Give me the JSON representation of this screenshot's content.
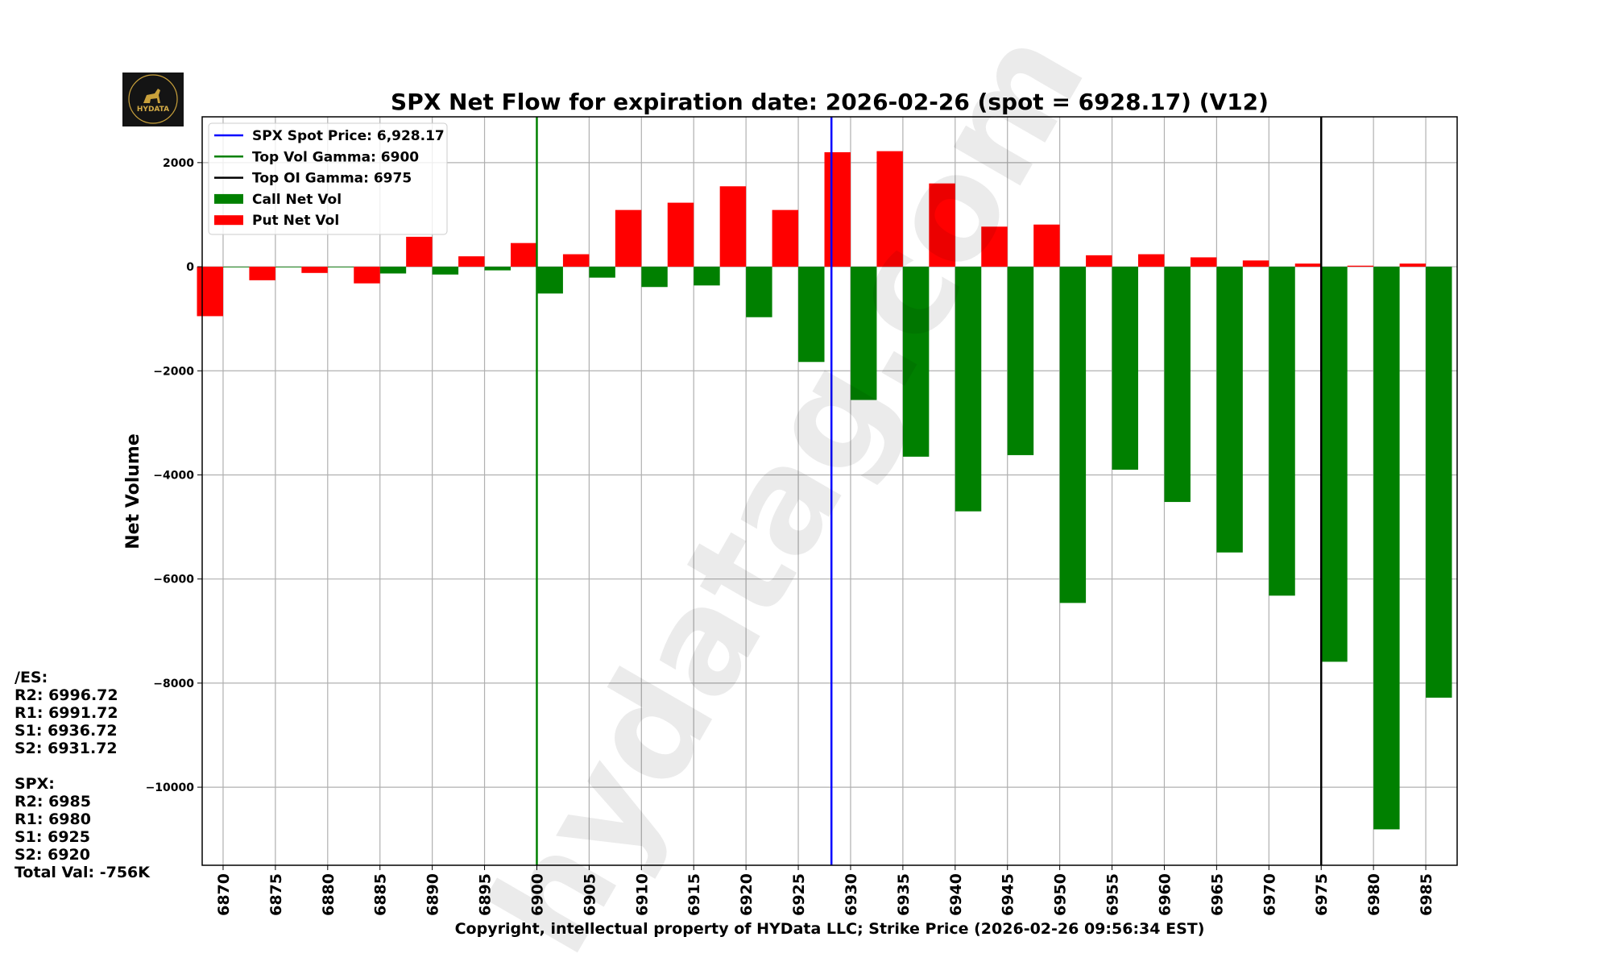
{
  "logo": {
    "text": "HYDATA"
  },
  "watermark": "hydatag.com",
  "side_panel": {
    "es_header": "/ES:",
    "es_lines": [
      "R2: 6996.72",
      "R1: 6991.72",
      "S1: 6936.72",
      "S2: 6931.72"
    ],
    "spx_header": "SPX:",
    "spx_lines": [
      "R2: 6985",
      "R1: 6980",
      "S1: 6925",
      "S2: 6920"
    ],
    "total": "Total Val: -756K"
  },
  "chart_data": {
    "type": "bar",
    "title": "SPX Net Flow for expiration date: 2026-02-26 (spot = 6928.17) (V12)",
    "xlabel": "Copyright, intellectual property of HYData LLC; Strike Price (2026-02-26 09:56:34 EST)",
    "ylabel": "Net Volume",
    "xlim": [
      6868,
      6988
    ],
    "ylim": [
      -11500,
      2880
    ],
    "grid": true,
    "legend_placement": "top-left",
    "yticks": [
      2000,
      0,
      -2000,
      -4000,
      -6000,
      -8000,
      -10000
    ],
    "ytick_labels": [
      "2000",
      "0",
      "−2000",
      "−4000",
      "−6000",
      "−8000",
      "−10000"
    ],
    "categories": [
      6870,
      6875,
      6880,
      6885,
      6890,
      6895,
      6900,
      6905,
      6910,
      6915,
      6920,
      6925,
      6930,
      6935,
      6940,
      6945,
      6950,
      6955,
      6960,
      6965,
      6970,
      6975,
      6980,
      6985
    ],
    "bar_width": 2.5,
    "series": [
      {
        "name": "Call Net Vol",
        "color": "#008000",
        "offset": 1.25,
        "values": [
          -10,
          -10,
          -10,
          -130,
          -150,
          -70,
          -515,
          -210,
          -390,
          -360,
          -970,
          -1830,
          -2560,
          -3650,
          -4700,
          -3620,
          -6460,
          -3900,
          -4520,
          -5490,
          -6320,
          -7590,
          -10810,
          -8280
        ]
      },
      {
        "name": "Put Net Vol",
        "color": "#ff0000",
        "offset": -1.25,
        "values": [
          -950,
          -260,
          -120,
          -320,
          575,
          200,
          455,
          240,
          1090,
          1230,
          1545,
          1090,
          2200,
          2220,
          1600,
          770,
          810,
          220,
          240,
          180,
          120,
          60,
          20,
          60
        ]
      }
    ],
    "vlines": [
      {
        "name": "SPX Spot Price: 6,928.17",
        "x": 6928.17,
        "color": "#0000ff"
      },
      {
        "name": "Top Vol Gamma: 6900",
        "x": 6900,
        "color": "#008000"
      },
      {
        "name": "Top OI Gamma: 6975",
        "x": 6975,
        "color": "#000000"
      }
    ]
  }
}
